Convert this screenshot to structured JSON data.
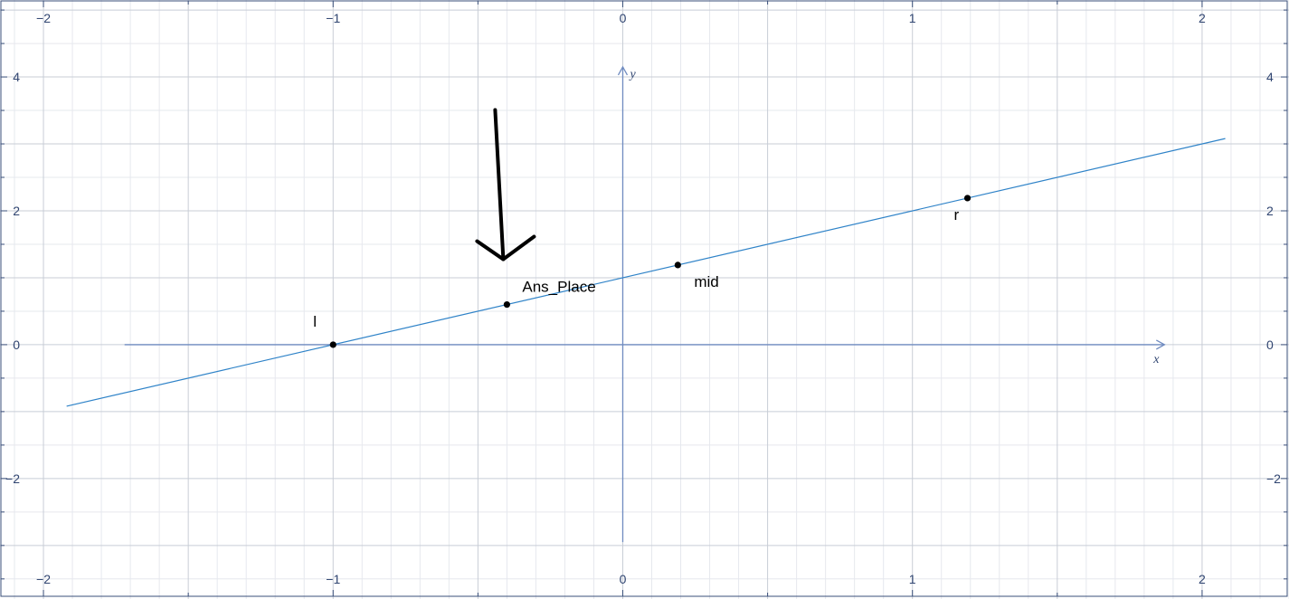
{
  "chart_data": {
    "type": "line",
    "title": "",
    "xlabel": "x",
    "ylabel": "y",
    "xlim": [
      -2.15,
      2.3
    ],
    "ylim": [
      -3.8,
      5.15
    ],
    "x_ticks": [
      -2,
      -1,
      0,
      1,
      2
    ],
    "y_ticks": [
      -2,
      0,
      2,
      4
    ],
    "x_tick_labels": [
      "−2",
      "−1",
      "0",
      "1",
      "2"
    ],
    "y_tick_labels": [
      "−2",
      "0",
      "2",
      "4"
    ],
    "grid": true,
    "x_axis_extent": [
      -1.72,
      1.87
    ],
    "y_axis_extent": [
      -2.95,
      4.15
    ],
    "series": [
      {
        "name": "line",
        "x": [
          -1.92,
          2.08
        ],
        "y": [
          -0.92,
          3.08
        ]
      }
    ],
    "points": [
      {
        "label": "l",
        "x": -1.0,
        "y": 0.0
      },
      {
        "label": "Ans_Place",
        "x": -0.4,
        "y": 0.6
      },
      {
        "label": "mid",
        "x": 0.19,
        "y": 1.19
      },
      {
        "label": "r",
        "x": 1.19,
        "y": 2.19
      }
    ],
    "annotation": {
      "type": "hand-drawn-arrow",
      "target": "Ans_Place"
    }
  }
}
